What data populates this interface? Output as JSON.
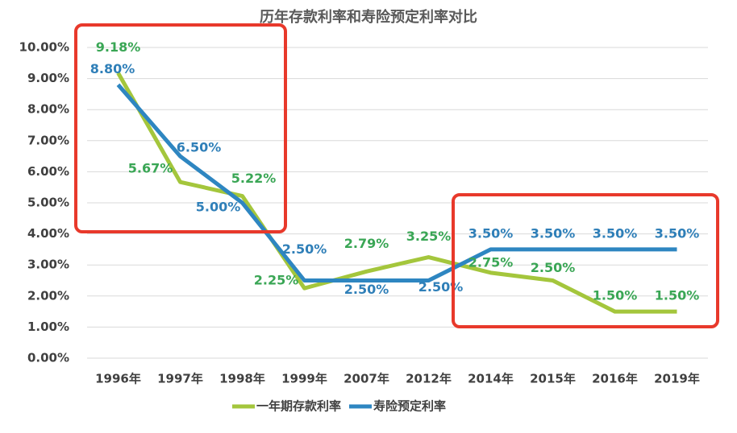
{
  "chart_data": {
    "type": "line",
    "title": "历年存款利率和寿险预定利率对比",
    "categories": [
      "1996年",
      "1997年",
      "1998年",
      "1999年",
      "2007年",
      "2012年",
      "2014年",
      "2015年",
      "2016年",
      "2019年"
    ],
    "series": [
      {
        "name": "一年期存款利率",
        "color": "#a4c63c",
        "label_color": "#3aa655",
        "values": [
          9.18,
          5.67,
          5.22,
          2.25,
          2.79,
          3.25,
          2.75,
          2.5,
          1.5,
          1.5
        ],
        "value_labels": [
          "9.18%",
          "5.67%",
          "5.22%",
          "2.25%",
          "2.79%",
          "3.25%",
          "2.75%",
          "2.50%",
          "1.50%",
          "1.50%"
        ]
      },
      {
        "name": "寿险预定利率",
        "color": "#2e86c1",
        "label_color": "#2f7fb8",
        "values": [
          8.8,
          6.5,
          5.0,
          2.5,
          2.5,
          2.5,
          3.5,
          3.5,
          3.5,
          3.5
        ],
        "value_labels": [
          "8.80%",
          "6.50%",
          "5.00%",
          "2.50%",
          "2.50%",
          "2.50%",
          "3.50%",
          "3.50%",
          "3.50%",
          "3.50%"
        ]
      }
    ],
    "ylim": [
      0,
      10
    ],
    "yticks": [
      {
        "value": 0,
        "label": "0.00%"
      },
      {
        "value": 1,
        "label": "1.00%"
      },
      {
        "value": 2,
        "label": "2.00%"
      },
      {
        "value": 3,
        "label": "3.00%"
      },
      {
        "value": 4,
        "label": "4.00%"
      },
      {
        "value": 5,
        "label": "5.00%"
      },
      {
        "value": 6,
        "label": "6.00%"
      },
      {
        "value": 7,
        "label": "7.00%"
      },
      {
        "value": 8,
        "label": "8.00%"
      },
      {
        "value": 9,
        "label": "9.00%"
      },
      {
        "value": 10,
        "label": "10.00%"
      }
    ],
    "grid": true,
    "legend": "bottom"
  }
}
